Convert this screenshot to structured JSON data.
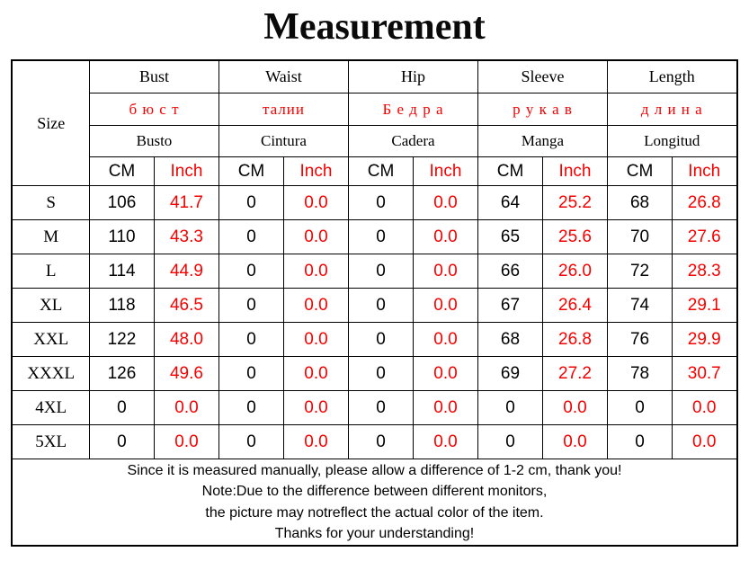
{
  "title": "Measurement",
  "colors": {
    "accent_red": "#f60000",
    "text": "#000000",
    "border": "#000000",
    "background": "#ffffff"
  },
  "header": {
    "size_label": "Size",
    "groups": [
      {
        "en": "Bust",
        "ru": "б ю с т",
        "es": "Busto"
      },
      {
        "en": "Waist",
        "ru": "талии",
        "es": "Cintura"
      },
      {
        "en": "Hip",
        "ru": "Б е д р а",
        "es": "Cadera"
      },
      {
        "en": "Sleeve",
        "ru": "р у к а в",
        "es": "Manga"
      },
      {
        "en": "Length",
        "ru": "д л и н а",
        "es": "Longitud"
      }
    ],
    "units": {
      "cm": "CM",
      "inch": "Inch"
    }
  },
  "chart_data": {
    "type": "table",
    "title": "Measurement",
    "columns": [
      "Size",
      "Bust CM",
      "Bust Inch",
      "Waist CM",
      "Waist Inch",
      "Hip CM",
      "Hip Inch",
      "Sleeve CM",
      "Sleeve Inch",
      "Length CM",
      "Length Inch"
    ],
    "rows": [
      [
        "S",
        "106",
        "41.7",
        "0",
        "0.0",
        "0",
        "0.0",
        "64",
        "25.2",
        "68",
        "26.8"
      ],
      [
        "M",
        "110",
        "43.3",
        "0",
        "0.0",
        "0",
        "0.0",
        "65",
        "25.6",
        "70",
        "27.6"
      ],
      [
        "L",
        "114",
        "44.9",
        "0",
        "0.0",
        "0",
        "0.0",
        "66",
        "26.0",
        "72",
        "28.3"
      ],
      [
        "XL",
        "118",
        "46.5",
        "0",
        "0.0",
        "0",
        "0.0",
        "67",
        "26.4",
        "74",
        "29.1"
      ],
      [
        "XXL",
        "122",
        "48.0",
        "0",
        "0.0",
        "0",
        "0.0",
        "68",
        "26.8",
        "76",
        "29.9"
      ],
      [
        "XXXL",
        "126",
        "49.6",
        "0",
        "0.0",
        "0",
        "0.0",
        "69",
        "27.2",
        "78",
        "30.7"
      ],
      [
        "4XL",
        "0",
        "0.0",
        "0",
        "0.0",
        "0",
        "0.0",
        "0",
        "0.0",
        "0",
        "0.0"
      ],
      [
        "5XL",
        "0",
        "0.0",
        "0",
        "0.0",
        "0",
        "0.0",
        "0",
        "0.0",
        "0",
        "0.0"
      ]
    ]
  },
  "footer": {
    "lines": [
      "Since it is measured manually, please allow a difference of 1-2 cm, thank you!",
      "Note:Due to the difference between different monitors,",
      "the picture may notreflect the actual color of the item.",
      "Thanks for your understanding!"
    ]
  }
}
